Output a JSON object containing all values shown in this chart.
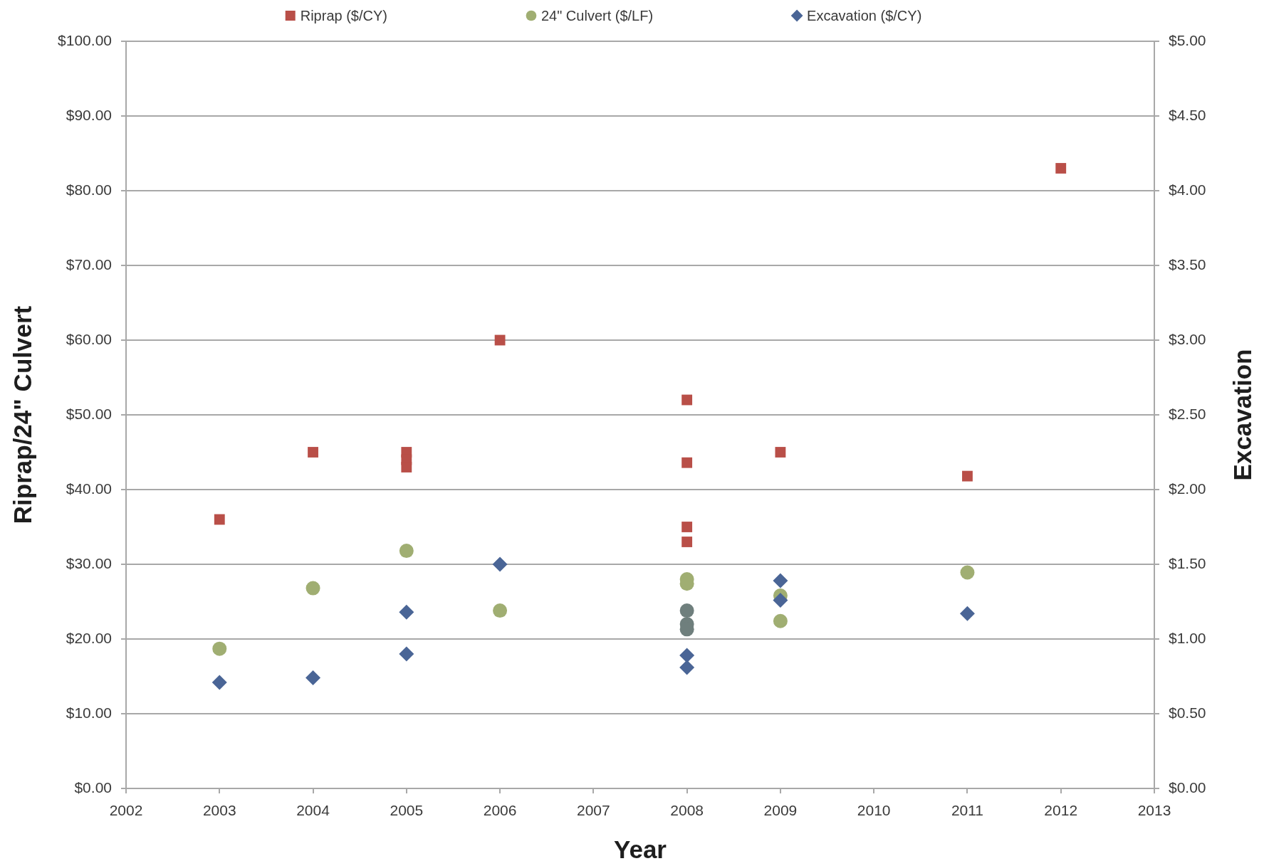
{
  "chart_data": {
    "type": "scatter",
    "xlabel": "Year",
    "ylabel": "Riprap/24\" Culvert",
    "y2label": "Excavation",
    "xlim": [
      2002,
      2013
    ],
    "xticks": [
      2002,
      2003,
      2004,
      2005,
      2006,
      2007,
      2008,
      2009,
      2010,
      2011,
      2012,
      2013
    ],
    "ylim": [
      0,
      100
    ],
    "yticks": [
      {
        "value": 0,
        "label": "$0.00"
      },
      {
        "value": 10,
        "label": "$10.00"
      },
      {
        "value": 20,
        "label": "$20.00"
      },
      {
        "value": 30,
        "label": "$30.00"
      },
      {
        "value": 40,
        "label": "$40.00"
      },
      {
        "value": 50,
        "label": "$50.00"
      },
      {
        "value": 60,
        "label": "$60.00"
      },
      {
        "value": 70,
        "label": "$70.00"
      },
      {
        "value": 80,
        "label": "$80.00"
      },
      {
        "value": 90,
        "label": "$90.00"
      },
      {
        "value": 100,
        "label": "$100.00"
      }
    ],
    "y2lim": [
      0,
      5
    ],
    "y2ticks": [
      {
        "value": 0,
        "label": "$0.00"
      },
      {
        "value": 0.5,
        "label": "$0.50"
      },
      {
        "value": 1,
        "label": "$1.00"
      },
      {
        "value": 1.5,
        "label": "$1.50"
      },
      {
        "value": 2,
        "label": "$2.00"
      },
      {
        "value": 2.5,
        "label": "$2.50"
      },
      {
        "value": 3,
        "label": "$3.00"
      },
      {
        "value": 3.5,
        "label": "$3.50"
      },
      {
        "value": 4,
        "label": "$4.00"
      },
      {
        "value": 4.5,
        "label": "$4.50"
      },
      {
        "value": 5,
        "label": "$5.00"
      }
    ],
    "grid": "y",
    "legend": "top",
    "series": [
      {
        "name": "Riprap ($/CY)",
        "color": "#b94f48",
        "marker": "square",
        "x": [
          2003,
          2004,
          2005,
          2005,
          2005,
          2006,
          2008,
          2008,
          2008,
          2008,
          2009,
          2011,
          2012
        ],
        "values": [
          36,
          45,
          45,
          44,
          43,
          60,
          52,
          43.6,
          35,
          33,
          45,
          41.8,
          83
        ]
      },
      {
        "name": "24\" Culvert ($/LF)",
        "color": "#a0ae72",
        "colors": [
          "#a0ae72",
          "#a0ae72",
          "#a0ae72",
          "#a0ae72",
          "#a0ae72",
          "#a0ae72",
          "#6f7f7d",
          "#6f7f7d",
          "#6f7f7d",
          "#a0ae72",
          "#a0ae72",
          "#a0ae72"
        ],
        "marker": "circle",
        "x": [
          2003,
          2004,
          2005,
          2006,
          2008,
          2008,
          2008,
          2008,
          2008,
          2009,
          2009,
          2011
        ],
        "values": [
          18.7,
          26.8,
          31.8,
          23.8,
          28,
          27.4,
          23.8,
          22,
          21.3,
          25.8,
          22.4,
          28.9
        ]
      },
      {
        "name": "Excavation ($/CY)",
        "color": "#4a6596",
        "marker": "diamond",
        "axis": "y2",
        "x": [
          2003,
          2004,
          2005,
          2005,
          2006,
          2008,
          2008,
          2009,
          2009,
          2011
        ],
        "values": [
          0.71,
          0.74,
          1.18,
          0.9,
          1.5,
          0.89,
          0.81,
          1.39,
          1.26,
          1.17
        ]
      }
    ]
  }
}
